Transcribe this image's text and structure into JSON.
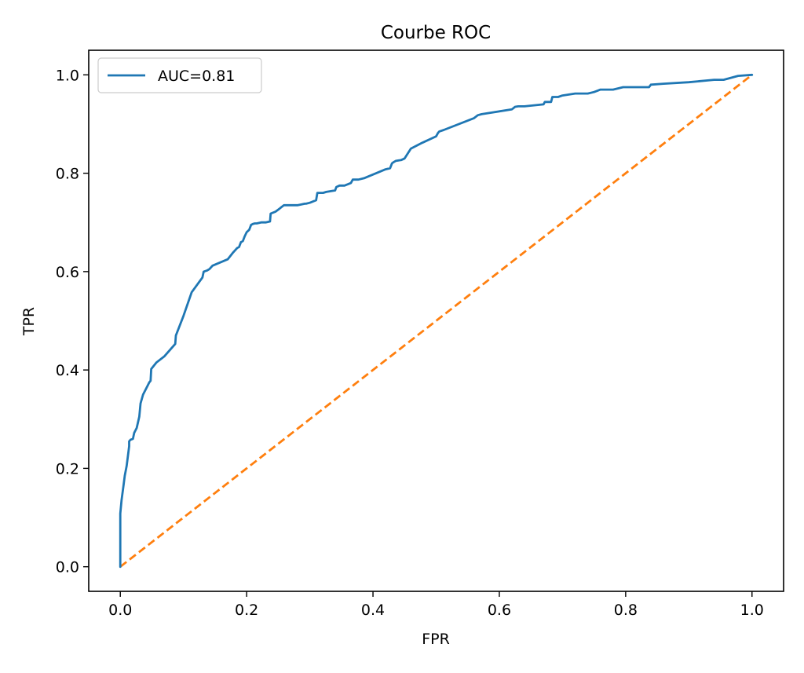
{
  "chart_data": {
    "type": "line",
    "title": "Courbe ROC",
    "xlabel": "FPR",
    "ylabel": "TPR",
    "xlim": [
      -0.05,
      1.05
    ],
    "ylim": [
      -0.05,
      1.05
    ],
    "xticks": [
      0.0,
      0.2,
      0.4,
      0.6,
      0.8,
      1.0
    ],
    "yticks": [
      0.0,
      0.2,
      0.4,
      0.6,
      0.8,
      1.0
    ],
    "xtick_labels": [
      "0.0",
      "0.2",
      "0.4",
      "0.6",
      "0.8",
      "1.0"
    ],
    "ytick_labels": [
      "0.0",
      "0.2",
      "0.4",
      "0.6",
      "0.8",
      "1.0"
    ],
    "grid": false,
    "legend_position": "top-left",
    "series": [
      {
        "name": "AUC=0.81",
        "color": "#1f77b4",
        "style": "solid",
        "x": [
          0.0,
          0.0,
          0.002,
          0.005,
          0.007,
          0.01,
          0.012,
          0.014,
          0.014,
          0.016,
          0.02,
          0.022,
          0.026,
          0.03,
          0.032,
          0.036,
          0.042,
          0.046,
          0.048,
          0.049,
          0.057,
          0.07,
          0.087,
          0.088,
          0.1,
          0.113,
          0.13,
          0.132,
          0.137,
          0.141,
          0.146,
          0.17,
          0.178,
          0.185,
          0.188,
          0.191,
          0.194,
          0.197,
          0.2,
          0.204,
          0.207,
          0.21,
          0.213,
          0.216,
          0.223,
          0.23,
          0.237,
          0.238,
          0.246,
          0.252,
          0.254,
          0.259,
          0.263,
          0.281,
          0.292,
          0.294,
          0.3,
          0.31,
          0.312,
          0.321,
          0.326,
          0.34,
          0.342,
          0.347,
          0.355,
          0.365,
          0.368,
          0.377,
          0.386,
          0.39,
          0.405,
          0.42,
          0.427,
          0.43,
          0.432,
          0.436,
          0.445,
          0.45,
          0.46,
          0.478,
          0.5,
          0.503,
          0.505,
          0.512,
          0.56,
          0.566,
          0.572,
          0.62,
          0.625,
          0.63,
          0.64,
          0.67,
          0.672,
          0.682,
          0.684,
          0.693,
          0.7,
          0.71,
          0.72,
          0.74,
          0.75,
          0.76,
          0.77,
          0.78,
          0.796,
          0.8,
          0.82,
          0.837,
          0.84,
          0.86,
          0.9,
          0.94,
          0.955,
          0.978,
          1.0
        ],
        "y": [
          0.0,
          0.108,
          0.135,
          0.165,
          0.185,
          0.205,
          0.225,
          0.245,
          0.255,
          0.258,
          0.26,
          0.272,
          0.282,
          0.305,
          0.332,
          0.35,
          0.365,
          0.375,
          0.378,
          0.402,
          0.415,
          0.428,
          0.453,
          0.47,
          0.51,
          0.558,
          0.588,
          0.6,
          0.602,
          0.605,
          0.612,
          0.625,
          0.638,
          0.648,
          0.65,
          0.66,
          0.662,
          0.672,
          0.68,
          0.685,
          0.695,
          0.697,
          0.698,
          0.698,
          0.7,
          0.7,
          0.702,
          0.718,
          0.722,
          0.728,
          0.73,
          0.735,
          0.735,
          0.735,
          0.738,
          0.738,
          0.74,
          0.745,
          0.76,
          0.76,
          0.762,
          0.765,
          0.772,
          0.775,
          0.775,
          0.78,
          0.787,
          0.787,
          0.79,
          0.792,
          0.8,
          0.808,
          0.81,
          0.82,
          0.822,
          0.825,
          0.827,
          0.83,
          0.85,
          0.862,
          0.875,
          0.882,
          0.885,
          0.888,
          0.912,
          0.918,
          0.92,
          0.93,
          0.935,
          0.936,
          0.936,
          0.94,
          0.945,
          0.945,
          0.955,
          0.955,
          0.958,
          0.96,
          0.962,
          0.962,
          0.965,
          0.97,
          0.97,
          0.97,
          0.975,
          0.975,
          0.975,
          0.975,
          0.98,
          0.982,
          0.985,
          0.99,
          0.99,
          0.998,
          1.0
        ]
      },
      {
        "name": "",
        "color": "#ff7f0e",
        "style": "dashed",
        "x": [
          0.0,
          1.0
        ],
        "y": [
          0.0,
          1.0
        ]
      }
    ]
  }
}
